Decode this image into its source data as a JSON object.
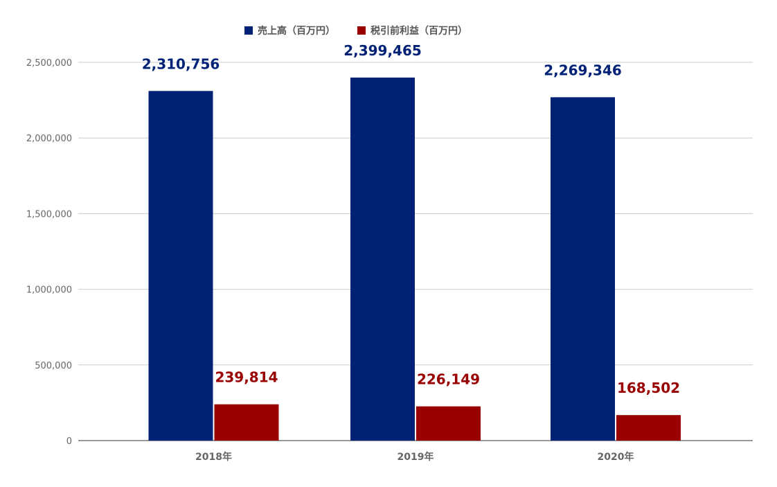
{
  "chart_data": {
    "type": "bar",
    "categories": [
      "2018年",
      "2019年",
      "2020年"
    ],
    "series": [
      {
        "name": "売上高（百万円）",
        "values": [
          2310756,
          2399465,
          2269346
        ],
        "labels": [
          "2,310,756",
          "2,399,465",
          "2,269,346"
        ],
        "color": "#002276"
      },
      {
        "name": "税引前利益（百万円）",
        "values": [
          239814,
          226149,
          168502
        ],
        "labels": [
          "239,814",
          "226,149",
          "168,502"
        ],
        "color": "#990000"
      }
    ],
    "yticks": [
      "0",
      "500,000",
      "1,000,000",
      "1,500,000",
      "2,000,000",
      "2,500,000"
    ],
    "ytick_values": [
      0,
      500000,
      1000000,
      1500000,
      2000000,
      2500000
    ],
    "ylim": [
      0,
      2500000
    ],
    "title": "",
    "xlabel": "",
    "ylabel": "",
    "grid": true,
    "legend_position": "top-center",
    "gridline_color": "#cccccc",
    "axis_color": "#333333"
  }
}
